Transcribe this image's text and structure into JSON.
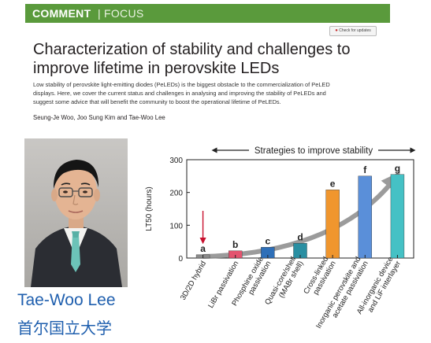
{
  "banner": {
    "section": "COMMENT",
    "separator": "|",
    "subsection": "FOCUS"
  },
  "badge": {
    "label": "Check for updates",
    "icon": "check-for-updates-icon",
    "color": "#c62f2f"
  },
  "article": {
    "title_line1": "Characterization of stability and challenges to",
    "title_line2": "improve lifetime in perovskite LEDs",
    "abstract_line1": "Low stability of perovskite light-emitting diodes (PeLEDs) is the biggest obstacle to the commercialization of PeLED",
    "abstract_line2": "displays. Here, we cover the current status and challenges in analysing and improving the stability of PeLEDs and",
    "abstract_line3": "suggest some advice that will benefit the community to boost the operational lifetime of PeLEDs.",
    "authors": "Seung-Je Woo, Joo Sung Kim and Tae-Woo Lee"
  },
  "portrait": {
    "name": "Tae-Woo Lee",
    "affiliation": "首尔国立大学"
  },
  "colors": {
    "banner": "#5a9a3c",
    "caption": "#1f5fae",
    "arrow_red": "#c8102e",
    "trend_arrow": "#8a8a8a"
  },
  "chart_data": {
    "type": "bar",
    "title": "Strategies to improve stability",
    "ylabel": "LT50 (hours)",
    "ylim": [
      0,
      300
    ],
    "yticks": [
      0,
      100,
      200,
      300
    ],
    "grid": false,
    "categories": [
      "3D/2D hybrid",
      "LiBr passivation",
      "Phosphine oxide passivation",
      "Quasi-core/shell (MABr shell)",
      "Cross-linked passivation",
      "Inorganic perovskite and acetate passivation",
      "All-inorganic device and LiF interlayer"
    ],
    "category_lines": [
      [
        "3D/2D hybrid"
      ],
      [
        "LiBr passivation"
      ],
      [
        "Phosphine oxide",
        "passivation"
      ],
      [
        "Quasi-core/shell",
        "(MABr shell)"
      ],
      [
        "Cross-linked",
        "passivation"
      ],
      [
        "Inorganic perovskite and",
        "acetate passivation"
      ],
      [
        "All-inorganic device",
        "and LiF interlayer"
      ]
    ],
    "bar_letters": [
      "a",
      "b",
      "c",
      "d",
      "e",
      "f",
      "g"
    ],
    "values": [
      10,
      22,
      33,
      45,
      208,
      250,
      255
    ],
    "bar_colors": [
      "#8c8c8c",
      "#e4546f",
      "#2e6fb8",
      "#2a8fa2",
      "#f0962e",
      "#5a8fd9",
      "#45c1c5"
    ]
  }
}
